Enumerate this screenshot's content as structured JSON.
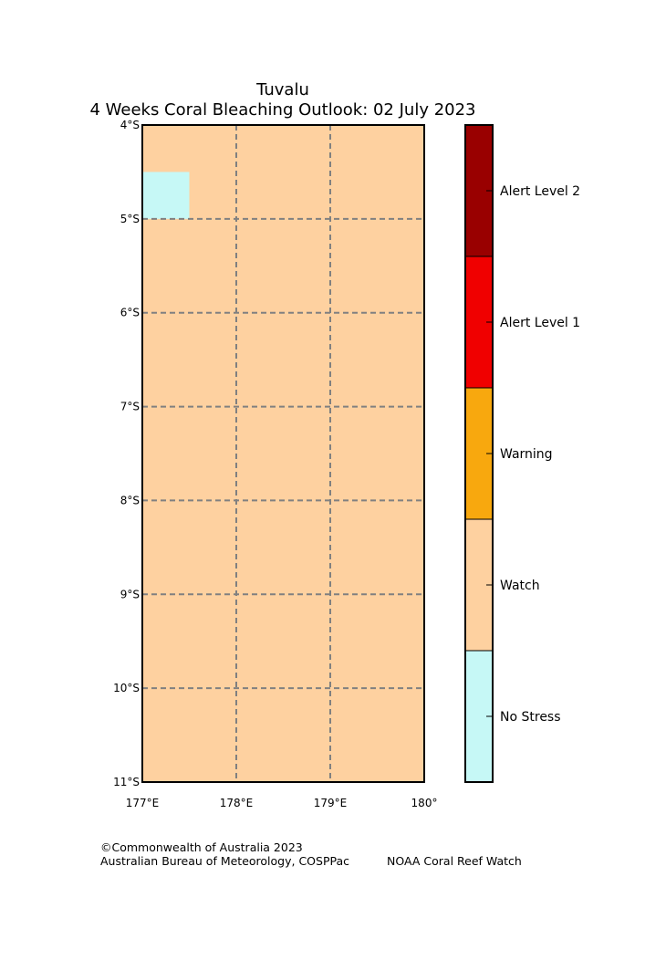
{
  "title": {
    "line1": "Tuvalu",
    "line2": "4 Weeks Coral Bleaching Outlook: 02 July 2023"
  },
  "map": {
    "lon_range": [
      177,
      180
    ],
    "lat_range": [
      -11,
      -4
    ],
    "background_category": "Watch",
    "cells": [
      {
        "lon_min": 177.0,
        "lon_max": 177.5,
        "lat_min": -5.0,
        "lat_max": -4.5,
        "category": "No Stress"
      }
    ],
    "lat_ticks": [
      {
        "value": -4,
        "label": "4°S"
      },
      {
        "value": -5,
        "label": "5°S"
      },
      {
        "value": -6,
        "label": "6°S"
      },
      {
        "value": -7,
        "label": "7°S"
      },
      {
        "value": -8,
        "label": "8°S"
      },
      {
        "value": -9,
        "label": "9°S"
      },
      {
        "value": -10,
        "label": "10°S"
      },
      {
        "value": -11,
        "label": "11°S"
      }
    ],
    "lon_ticks": [
      {
        "value": 177,
        "label": "177°E"
      },
      {
        "value": 178,
        "label": "178°E"
      },
      {
        "value": 179,
        "label": "179°E"
      },
      {
        "value": 180,
        "label": "180°"
      }
    ],
    "gridlines": true
  },
  "legend": {
    "items": [
      {
        "label": "Alert Level 2",
        "color": "#990000"
      },
      {
        "label": "Alert Level 1",
        "color": "#f00000"
      },
      {
        "label": "Warning",
        "color": "#f8a80e"
      },
      {
        "label": "Watch",
        "color": "#fed1a0"
      },
      {
        "label": "No Stress",
        "color": "#c6f8f6"
      }
    ]
  },
  "credits": {
    "copyright": "©Commonwealth of Australia 2023",
    "agency": "Australian Bureau of Meteorology, COSPPac",
    "partner": "NOAA Coral Reef Watch"
  }
}
